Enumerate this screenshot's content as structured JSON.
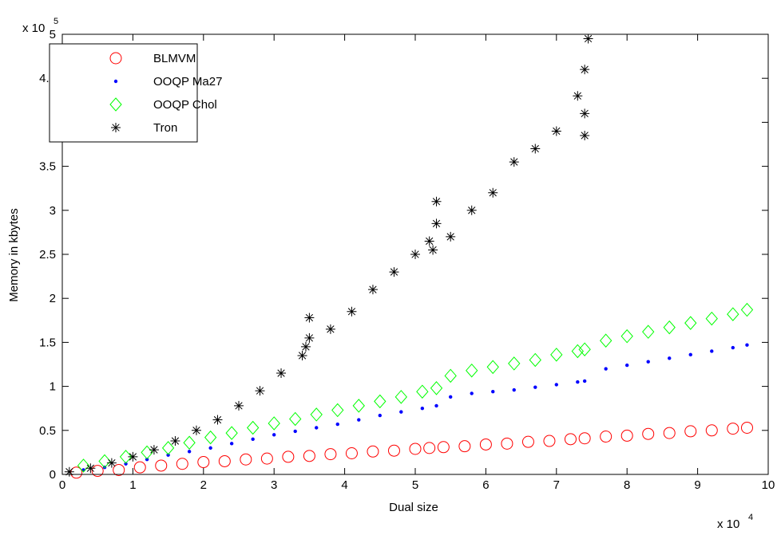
{
  "chart_data": {
    "type": "scatter",
    "x_label": "Dual size",
    "y_label": "Memory in kbytes",
    "x_scale_base": "x 10",
    "x_scale_exponent": "4",
    "y_scale_base": "x 10",
    "y_scale_exponent": "5",
    "xlim": [
      0,
      10
    ],
    "xticks": [
      0,
      1,
      2,
      3,
      4,
      5,
      6,
      7,
      8,
      9,
      10
    ],
    "ylim": [
      0,
      5
    ],
    "yticks": [
      0,
      0.5,
      1,
      1.5,
      2,
      2.5,
      3,
      3.5,
      4,
      4.5,
      5
    ],
    "legend_position": "upper-left",
    "series": [
      {
        "name": "BLMVM",
        "color": "#ff0000",
        "marker": "circle",
        "x": [
          0.2,
          0.5,
          0.8,
          1.1,
          1.4,
          1.7,
          2.0,
          2.3,
          2.6,
          2.9,
          3.2,
          3.5,
          3.8,
          4.1,
          4.4,
          4.7,
          5.0,
          5.2,
          5.4,
          5.7,
          6.0,
          6.3,
          6.6,
          6.9,
          7.2,
          7.4,
          7.7,
          8.0,
          8.3,
          8.6,
          8.9,
          9.2,
          9.5,
          9.7
        ],
        "values": [
          0.02,
          0.04,
          0.05,
          0.08,
          0.1,
          0.12,
          0.14,
          0.15,
          0.17,
          0.18,
          0.2,
          0.21,
          0.23,
          0.24,
          0.26,
          0.27,
          0.29,
          0.3,
          0.31,
          0.32,
          0.34,
          0.35,
          0.37,
          0.38,
          0.4,
          0.41,
          0.43,
          0.44,
          0.46,
          0.47,
          0.49,
          0.5,
          0.52,
          0.53
        ]
      },
      {
        "name": "OOQP Ma27",
        "color": "#0000ff",
        "marker": "dot",
        "x": [
          0.3,
          0.6,
          0.9,
          1.2,
          1.5,
          1.8,
          2.1,
          2.4,
          2.7,
          3.0,
          3.3,
          3.6,
          3.9,
          4.2,
          4.5,
          4.8,
          5.1,
          5.3,
          5.5,
          5.8,
          6.1,
          6.4,
          6.7,
          7.0,
          7.3,
          7.4,
          7.7,
          8.0,
          8.3,
          8.6,
          8.9,
          9.2,
          9.5,
          9.7
        ],
        "values": [
          0.05,
          0.08,
          0.12,
          0.17,
          0.22,
          0.26,
          0.3,
          0.35,
          0.4,
          0.45,
          0.49,
          0.53,
          0.57,
          0.62,
          0.67,
          0.71,
          0.75,
          0.78,
          0.88,
          0.92,
          0.94,
          0.96,
          0.99,
          1.02,
          1.05,
          1.06,
          1.2,
          1.24,
          1.28,
          1.32,
          1.36,
          1.4,
          1.44,
          1.47
        ]
      },
      {
        "name": "OOQP Chol",
        "color": "#00ff00",
        "marker": "diamond",
        "x": [
          0.3,
          0.6,
          0.9,
          1.2,
          1.5,
          1.8,
          2.1,
          2.4,
          2.7,
          3.0,
          3.3,
          3.6,
          3.9,
          4.2,
          4.5,
          4.8,
          5.1,
          5.3,
          5.5,
          5.8,
          6.1,
          6.4,
          6.7,
          7.0,
          7.3,
          7.4,
          7.7,
          8.0,
          8.3,
          8.6,
          8.9,
          9.2,
          9.5,
          9.7
        ],
        "values": [
          0.1,
          0.15,
          0.2,
          0.25,
          0.3,
          0.36,
          0.42,
          0.47,
          0.53,
          0.58,
          0.63,
          0.68,
          0.73,
          0.78,
          0.83,
          0.88,
          0.94,
          0.98,
          1.12,
          1.18,
          1.22,
          1.26,
          1.3,
          1.36,
          1.4,
          1.42,
          1.52,
          1.57,
          1.62,
          1.67,
          1.72,
          1.77,
          1.82,
          1.87
        ]
      },
      {
        "name": "Tron",
        "color": "#000000",
        "marker": "star",
        "x": [
          0.1,
          0.4,
          0.7,
          1.0,
          1.3,
          1.6,
          1.9,
          2.2,
          2.5,
          2.8,
          3.1,
          3.4,
          3.5,
          3.5,
          3.45,
          3.8,
          4.1,
          4.4,
          4.7,
          5.0,
          5.2,
          5.3,
          5.3,
          5.25,
          5.5,
          5.8,
          6.1,
          6.4,
          6.7,
          7.0,
          7.3,
          7.4,
          7.4,
          7.45,
          7.4
        ],
        "values": [
          0.03,
          0.07,
          0.13,
          0.2,
          0.28,
          0.38,
          0.5,
          0.62,
          0.78,
          0.95,
          1.15,
          1.35,
          1.55,
          1.78,
          1.45,
          1.65,
          1.85,
          2.1,
          2.3,
          2.5,
          2.65,
          2.85,
          3.1,
          2.55,
          2.7,
          3.0,
          3.2,
          3.55,
          3.7,
          3.9,
          4.3,
          4.1,
          4.6,
          4.95,
          3.85
        ]
      }
    ]
  }
}
